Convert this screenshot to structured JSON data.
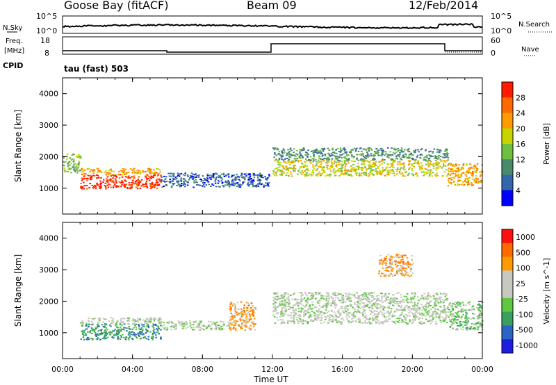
{
  "header": {
    "station": "Goose Bay (fitACF)",
    "beam": "Beam 09",
    "date": "12/Feb/2014"
  },
  "strip_noise": {
    "left_label": "N.Sky",
    "left_top_tick": "10^5",
    "left_bottom_tick": "10^0",
    "right_label": "N.Search",
    "right_top_tick": "10^5",
    "right_bottom_tick": "10^0"
  },
  "strip_freq": {
    "left_label_1": "Freq.",
    "left_label_2": "[MHz]",
    "left_top_tick": "18",
    "left_bottom_tick": "8",
    "right_label": "Nave",
    "right_top_tick": "60",
    "right_bottom_tick": "0",
    "cpid_label": "CPID",
    "cpid_text": "tau (fast) 503"
  },
  "colors": {
    "power_scale": [
      "#0000ff",
      "#3366aa",
      "#4a8a6a",
      "#6fbf40",
      "#c8d400",
      "#ff9a00",
      "#ff6a00",
      "#ff1a00"
    ],
    "velocity_scale": [
      "#1e1ee0",
      "#2a64c4",
      "#3aa060",
      "#5fc840",
      "#c8c8c0",
      "#c8c8c0",
      "#ff9a00",
      "#ff6a00",
      "#ff1010"
    ]
  },
  "chart_data": [
    {
      "type": "heatmap",
      "title": "",
      "quantity": "Power",
      "ylabel": "Slant Range [km]",
      "xlabel": "Time UT",
      "yticks": [
        "1000",
        "2000",
        "3000",
        "4000"
      ],
      "ylim": [
        180,
        4500
      ],
      "xticks": [
        "00:00",
        "04:00",
        "08:00",
        "12:00",
        "16:00",
        "20:00",
        "00:00"
      ],
      "colorbar_label": "Power [dB]",
      "colorbar_ticks": [
        "4",
        "8",
        "12",
        "16",
        "20",
        "24",
        "28"
      ],
      "regions": [
        {
          "t": [
            1.0,
            5.6
          ],
          "r": [
            1000,
            1450
          ],
          "level": 7
        },
        {
          "t": [
            1.0,
            5.6
          ],
          "r": [
            1450,
            1650
          ],
          "level": 5
        },
        {
          "t": [
            0.0,
            1.0
          ],
          "r": [
            1500,
            2100
          ],
          "level": 3
        },
        {
          "t": [
            5.6,
            11.8
          ],
          "r": [
            1050,
            1500
          ],
          "level": 1
        },
        {
          "t": [
            12.0,
            22.0
          ],
          "r": [
            1400,
            1900
          ],
          "level": 4
        },
        {
          "t": [
            12.0,
            22.0
          ],
          "r": [
            1900,
            2300
          ],
          "level": 2
        },
        {
          "t": [
            22.0,
            24.0
          ],
          "r": [
            1100,
            1800
          ],
          "level": 5
        }
      ]
    },
    {
      "type": "heatmap",
      "title": "",
      "quantity": "Velocity",
      "ylabel": "Slant Range [km]",
      "xlabel": "Time UT",
      "yticks": [
        "1000",
        "2000",
        "3000",
        "4000"
      ],
      "ylim": [
        180,
        4500
      ],
      "xticks": [
        "00:00",
        "04:00",
        "08:00",
        "12:00",
        "16:00",
        "20:00",
        "00:00"
      ],
      "colorbar_label": "Velocity [m s^-1]",
      "colorbar_ticks": [
        "1000",
        "500",
        "100",
        "25",
        "-25",
        "-100",
        "-500",
        "-1000"
      ],
      "regions": [
        {
          "t": [
            1.0,
            5.6
          ],
          "r": [
            800,
            1300
          ],
          "level": 2
        },
        {
          "t": [
            1.0,
            5.6
          ],
          "r": [
            1300,
            1500
          ],
          "level": 4
        },
        {
          "t": [
            5.6,
            9.5
          ],
          "r": [
            1100,
            1400
          ],
          "level": 4
        },
        {
          "t": [
            9.5,
            11.0
          ],
          "r": [
            1100,
            2000
          ],
          "level": 6
        },
        {
          "t": [
            12.0,
            22.0
          ],
          "r": [
            1300,
            2300
          ],
          "level": 4
        },
        {
          "t": [
            18.0,
            20.0
          ],
          "r": [
            2800,
            3500
          ],
          "level": 6
        },
        {
          "t": [
            22.0,
            24.0
          ],
          "r": [
            1100,
            2000
          ],
          "level": 3
        }
      ]
    }
  ]
}
